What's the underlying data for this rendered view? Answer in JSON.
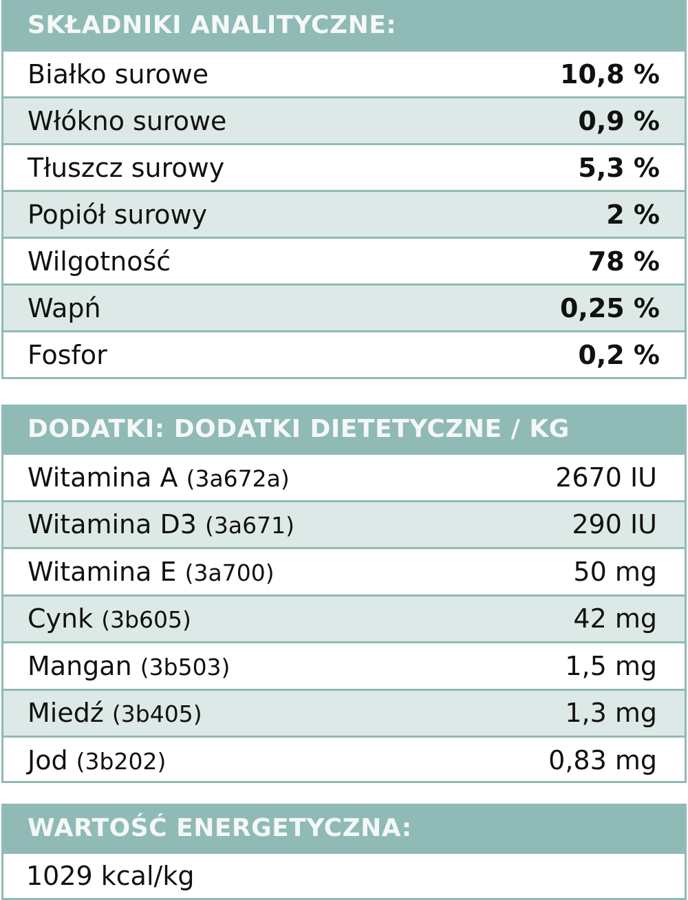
{
  "analytical": {
    "title": "SKŁADNIKI ANALITYCZNE:",
    "rows": [
      {
        "label": "Białko surowe",
        "value": "10,8 %"
      },
      {
        "label": "Włókno surowe",
        "value": "0,9 %"
      },
      {
        "label": "Tłuszcz surowy",
        "value": "5,3 %"
      },
      {
        "label": "Popiół surowy",
        "value": "2 %"
      },
      {
        "label": "Wilgotność",
        "value": "78 %"
      },
      {
        "label": "Wapń",
        "value": "0,25 %"
      },
      {
        "label": "Fosfor",
        "value": "0,2 %"
      }
    ]
  },
  "additives": {
    "title": "DODATKI: DODATKI DIETETYCZNE / KG",
    "rows": [
      {
        "label": "Witamina A",
        "code": "(3a672a)",
        "value": "2670 IU"
      },
      {
        "label": "Witamina D3",
        "code": "(3a671)",
        "value": "290 IU"
      },
      {
        "label": "Witamina E",
        "code": "(3a700)",
        "value": "50 mg"
      },
      {
        "label": "Cynk",
        "code": "(3b605)",
        "value": "42 mg"
      },
      {
        "label": "Mangan",
        "code": "(3b503)",
        "value": "1,5 mg"
      },
      {
        "label": "Miedź",
        "code": "(3b405)",
        "value": "1,3 mg"
      },
      {
        "label": "Jod",
        "code": "(3b202)",
        "value": "0,83 mg"
      }
    ]
  },
  "energy": {
    "title": "WARTOŚĆ ENERGETYCZNA:",
    "value": "1029 kcal/kg"
  }
}
